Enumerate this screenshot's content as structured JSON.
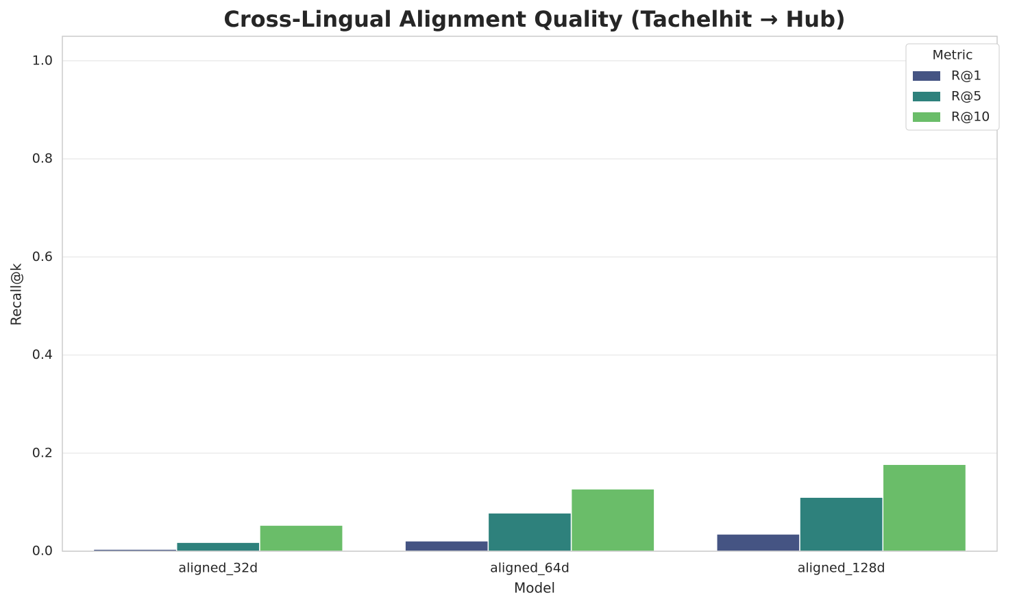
{
  "chart_data": {
    "type": "bar",
    "title": "Cross-Lingual Alignment Quality (Tachelhit → Hub)",
    "x_label": "Model",
    "y_label": "Recall@k",
    "categories": [
      "aligned_32d",
      "aligned_64d",
      "aligned_128d"
    ],
    "series": [
      {
        "name": "R@1",
        "color": "#455483",
        "values": [
          0.004,
          0.021,
          0.035
        ]
      },
      {
        "name": "R@5",
        "color": "#2e817c",
        "values": [
          0.018,
          0.078,
          0.11
        ]
      },
      {
        "name": "R@10",
        "color": "#6abd69",
        "values": [
          0.053,
          0.127,
          0.177
        ]
      }
    ],
    "ylim": [
      0,
      1.05
    ],
    "yticks": [
      {
        "value": 0,
        "label": "0.0"
      },
      0.2,
      0.4,
      0.6,
      0.8,
      {
        "value": 1,
        "label": "1.0"
      }
    ],
    "grid": true,
    "legend_title": "Metric",
    "legend_position": "upper-right"
  }
}
